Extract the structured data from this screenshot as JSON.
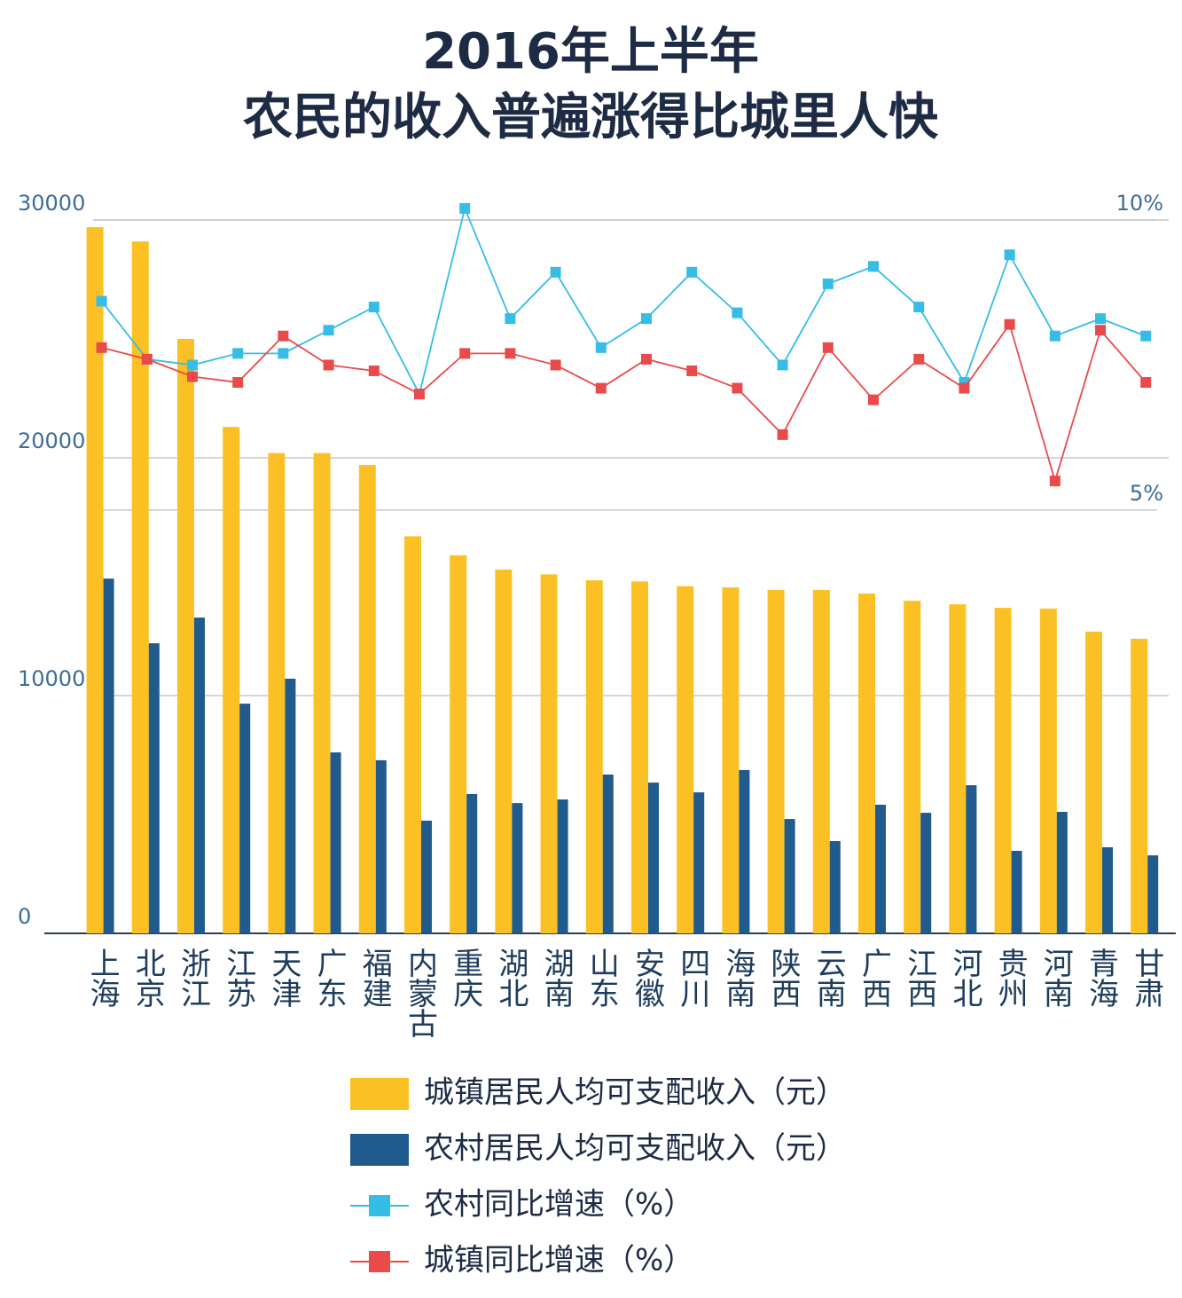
{
  "chart_data": {
    "type": "bar",
    "title": [
      "2016年上半年",
      "农民的收入普遍涨得比城里人快"
    ],
    "categories": [
      "上海",
      "北京",
      "浙江",
      "江苏",
      "天津",
      "广东",
      "福建",
      "内蒙古",
      "重庆",
      "湖北",
      "湖南",
      "山东",
      "安徽",
      "四川",
      "海南",
      "陕西",
      "云南",
      "广西",
      "江西",
      "河北",
      "贵州",
      "河南",
      "青海",
      "甘肃"
    ],
    "series": [
      {
        "name": "城镇居民人均可支配收入（元）",
        "type": "bar",
        "axis": "y",
        "color": "#fbc124",
        "values": [
          29700,
          29100,
          25000,
          21300,
          20200,
          20200,
          19700,
          16700,
          15900,
          15300,
          15100,
          14850,
          14800,
          14600,
          14550,
          14440,
          14440,
          14290,
          13990,
          13840,
          13690,
          13660,
          12690,
          12390
        ]
      },
      {
        "name": "农村居民人均可支配收入（元）",
        "type": "bar",
        "axis": "y",
        "color": "#215a8c",
        "values": [
          14920,
          12200,
          13280,
          9660,
          10710,
          7610,
          7280,
          4740,
          5860,
          5480,
          5630,
          6680,
          6340,
          5930,
          6870,
          4810,
          3880,
          5410,
          5070,
          6230,
          3470,
          5110,
          3620,
          3280
        ]
      },
      {
        "name": "农村同比增速（%）",
        "type": "line",
        "axis": "y2",
        "color": "#35bde6",
        "values": [
          8.6,
          7.6,
          7.5,
          7.7,
          7.7,
          8.1,
          8.5,
          7.0,
          10.2,
          8.3,
          9.1,
          7.8,
          8.3,
          9.1,
          8.4,
          7.5,
          8.9,
          9.2,
          8.5,
          7.2,
          9.4,
          8.0,
          8.3,
          8.0
        ]
      },
      {
        "name": "城镇同比增速（%）",
        "type": "line",
        "axis": "y2",
        "color": "#e94b4b",
        "values": [
          7.8,
          7.6,
          7.3,
          7.2,
          8.0,
          7.5,
          7.4,
          7.0,
          7.7,
          7.7,
          7.5,
          7.1,
          7.6,
          7.4,
          7.1,
          6.3,
          7.8,
          6.9,
          7.6,
          7.1,
          8.2,
          5.5,
          8.1,
          7.2
        ]
      }
    ],
    "ylim": [
      0,
      30000
    ],
    "yticks": [
      0,
      10000,
      20000,
      30000
    ],
    "y2lim": [
      -2.3,
      10
    ],
    "y2ticks": [
      {
        "value": 5,
        "label": "5%"
      },
      {
        "value": 10,
        "label": "10%"
      }
    ],
    "grid": true
  }
}
